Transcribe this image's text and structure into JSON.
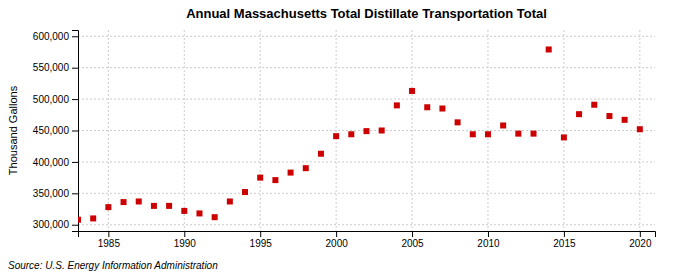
{
  "chart_data": {
    "type": "scatter",
    "title": "Annual Massachusetts Total Distillate Transportation Total",
    "ylabel": "Thousand Gallons",
    "annotation": "Source: U.S. Energy Information Administration",
    "x": [
      1983,
      1984,
      1985,
      1986,
      1987,
      1988,
      1989,
      1990,
      1991,
      1992,
      1993,
      1994,
      1995,
      1996,
      1997,
      1998,
      1999,
      2000,
      2001,
      2002,
      2003,
      2004,
      2005,
      2006,
      2007,
      2008,
      2009,
      2010,
      2011,
      2012,
      2013,
      2014,
      2015,
      2016,
      2017,
      2018,
      2019,
      2020
    ],
    "values": [
      308000,
      310000,
      328000,
      336000,
      337000,
      330000,
      330000,
      322000,
      318000,
      312000,
      337000,
      352000,
      375000,
      371000,
      383000,
      390000,
      413000,
      441000,
      444000,
      449000,
      450000,
      490000,
      513000,
      487000,
      485000,
      463000,
      444000,
      444000,
      458000,
      445000,
      445000,
      579000,
      439000,
      476000,
      491000,
      473000,
      467000,
      452000
    ],
    "color": "#cc0000",
    "marker": "square",
    "xlim": [
      1983,
      2021
    ],
    "ylim": [
      290000,
      610000
    ],
    "xticks": [
      1985,
      1990,
      1995,
      2000,
      2005,
      2010,
      2015,
      2020
    ],
    "yticks": [
      {
        "value": 300000,
        "label": "300,000"
      },
      {
        "value": 350000,
        "label": "350,000"
      },
      {
        "value": 400000,
        "label": "400,000"
      },
      {
        "value": 450000,
        "label": "450,000"
      },
      {
        "value": 500000,
        "label": "500,000"
      },
      {
        "value": 550000,
        "label": "550,000"
      },
      {
        "value": 600000,
        "label": "600,000"
      }
    ],
    "grid": true
  }
}
